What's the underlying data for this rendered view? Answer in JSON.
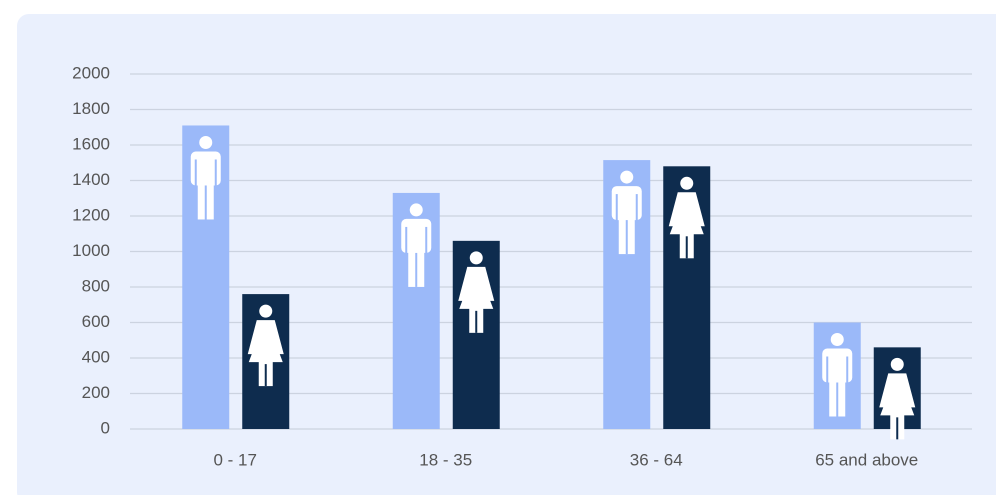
{
  "chart_data": {
    "type": "bar",
    "categories": [
      "0 - 17",
      "18 - 35",
      "36 - 64",
      "65 and above"
    ],
    "series": [
      {
        "color": "#9bb9f9",
        "values": [
          1710,
          1330,
          1515,
          600
        ]
      },
      {
        "color": "#0e2c4e",
        "values": [
          760,
          1060,
          1480,
          460
        ]
      }
    ],
    "ylim": [
      0,
      2000
    ],
    "yticks": [
      0,
      200,
      400,
      600,
      800,
      1000,
      1200,
      1400,
      1600,
      1800,
      2000
    ],
    "grid": true
  }
}
